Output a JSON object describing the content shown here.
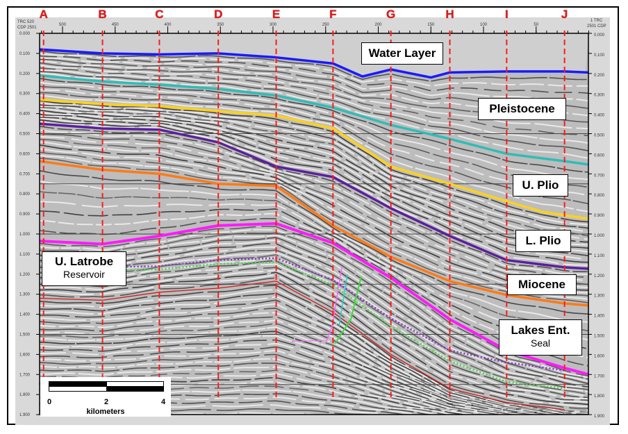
{
  "header": {
    "left_label_trc": "TRC 520",
    "left_label_cdp": "CDP 2501",
    "right_label_trc": "1 TRC",
    "right_label_cdp": "2501 CDP"
  },
  "trace_ticks": [
    "500",
    "450",
    "400",
    "350",
    "300",
    "250",
    "200",
    "150",
    "100",
    "50"
  ],
  "trace_tick_values": [
    500,
    450,
    400,
    350,
    300,
    250,
    200,
    150,
    100,
    50
  ],
  "time_ticks": [
    "0.000",
    "0.100",
    "0.200",
    "0.300",
    "0.400",
    "0.500",
    "0.600",
    "0.700",
    "0.800",
    "0.900",
    "1.000",
    "1.100",
    "1.200",
    "1.300",
    "1.400",
    "1.500",
    "1.600",
    "1.700",
    "1.800",
    "1.900"
  ],
  "wells": [
    {
      "name": "A",
      "cdp": 518
    },
    {
      "name": "B",
      "cdp": 462
    },
    {
      "name": "C",
      "cdp": 408
    },
    {
      "name": "D",
      "cdp": 352
    },
    {
      "name": "E",
      "cdp": 297
    },
    {
      "name": "F",
      "cdp": 243
    },
    {
      "name": "G",
      "cdp": 188
    },
    {
      "name": "H",
      "cdp": 132
    },
    {
      "name": "I",
      "cdp": 78
    },
    {
      "name": "J",
      "cdp": 23
    }
  ],
  "horizons": [
    {
      "name": "Water Layer",
      "color": "#1a1aff",
      "style": "solid",
      "points": [
        [
          522,
          0.08
        ],
        [
          462,
          0.1
        ],
        [
          408,
          0.105
        ],
        [
          352,
          0.1
        ],
        [
          297,
          0.12
        ],
        [
          243,
          0.15
        ],
        [
          215,
          0.215
        ],
        [
          188,
          0.18
        ],
        [
          150,
          0.22
        ],
        [
          132,
          0.195
        ],
        [
          78,
          0.19
        ],
        [
          23,
          0.19
        ],
        [
          0,
          0.195
        ]
      ]
    },
    {
      "name": "Pleistocene",
      "color": "#2fbcb8",
      "style": "solid",
      "points": [
        [
          522,
          0.21
        ],
        [
          462,
          0.24
        ],
        [
          408,
          0.256
        ],
        [
          352,
          0.277
        ],
        [
          297,
          0.31
        ],
        [
          243,
          0.37
        ],
        [
          188,
          0.457
        ],
        [
          132,
          0.526
        ],
        [
          78,
          0.6
        ],
        [
          23,
          0.637
        ],
        [
          0,
          0.654
        ]
      ]
    },
    {
      "name": "U. Plio",
      "color": "#ffd21a",
      "style": "solid",
      "points": [
        [
          522,
          0.33
        ],
        [
          462,
          0.353
        ],
        [
          408,
          0.363
        ],
        [
          352,
          0.388
        ],
        [
          297,
          0.41
        ],
        [
          243,
          0.474
        ],
        [
          188,
          0.664
        ],
        [
          132,
          0.75
        ],
        [
          78,
          0.837
        ],
        [
          44,
          0.89
        ],
        [
          0,
          0.924
        ]
      ]
    },
    {
      "name": "L. Plio",
      "color": "#5a1fa0",
      "style": "solid",
      "points": [
        [
          522,
          0.45
        ],
        [
          462,
          0.474
        ],
        [
          408,
          0.48
        ],
        [
          352,
          0.543
        ],
        [
          297,
          0.664
        ],
        [
          243,
          0.716
        ],
        [
          188,
          0.872
        ],
        [
          132,
          1.01
        ],
        [
          78,
          1.13
        ],
        [
          23,
          1.166
        ],
        [
          0,
          1.173
        ]
      ]
    },
    {
      "name": "Miocene",
      "color": "#ff7a14",
      "style": "solid",
      "points": [
        [
          522,
          0.637
        ],
        [
          462,
          0.68
        ],
        [
          408,
          0.7
        ],
        [
          352,
          0.75
        ],
        [
          297,
          0.76
        ],
        [
          243,
          0.958
        ],
        [
          188,
          1.114
        ],
        [
          132,
          1.235
        ],
        [
          78,
          1.304
        ],
        [
          23,
          1.346
        ],
        [
          0,
          1.356
        ]
      ]
    },
    {
      "name": "Lakes Ent.",
      "color": "#ff1aff",
      "style": "solid",
      "points": [
        [
          522,
          1.035
        ],
        [
          462,
          1.05
        ],
        [
          408,
          1.01
        ],
        [
          352,
          0.958
        ],
        [
          297,
          0.948
        ],
        [
          243,
          1.045
        ],
        [
          188,
          1.218
        ],
        [
          132,
          1.425
        ],
        [
          78,
          1.58
        ],
        [
          23,
          1.668
        ],
        [
          0,
          1.7
        ]
      ]
    },
    {
      "name": "Green marker",
      "color": "#3adc3a",
      "style": "dotted",
      "points": [
        [
          462,
          1.183
        ],
        [
          408,
          1.176
        ],
        [
          352,
          1.149
        ],
        [
          297,
          1.14
        ],
        [
          243,
          1.253
        ],
        [
          188,
          1.46
        ],
        [
          132,
          1.633
        ],
        [
          78,
          1.737
        ],
        [
          23,
          1.77
        ]
      ]
    },
    {
      "name": "Purple marker",
      "color": "#8a2fd0",
      "style": "dotted",
      "points": [
        [
          462,
          1.166
        ],
        [
          408,
          1.16
        ],
        [
          352,
          1.13
        ],
        [
          297,
          1.12
        ],
        [
          243,
          1.23
        ],
        [
          188,
          1.42
        ],
        [
          132,
          1.58
        ],
        [
          78,
          1.64
        ],
        [
          23,
          1.68
        ]
      ]
    },
    {
      "name": "Red marker",
      "color": "#d01a1a",
      "style": "thin",
      "points": [
        [
          522,
          1.32
        ],
        [
          462,
          1.33
        ],
        [
          408,
          1.29
        ],
        [
          352,
          1.27
        ],
        [
          297,
          1.235
        ],
        [
          243,
          1.39
        ],
        [
          188,
          1.6
        ],
        [
          132,
          1.77
        ],
        [
          78,
          1.84
        ],
        [
          23,
          1.875
        ]
      ]
    }
  ],
  "labels": {
    "water": {
      "title": "Water Layer"
    },
    "pleistocene": {
      "title": "Pleistocene"
    },
    "uplio": {
      "title": "U. Plio"
    },
    "lplio": {
      "title": "L. Plio"
    },
    "miocene": {
      "title": "Miocene"
    },
    "lakes": {
      "title": "Lakes Ent.",
      "subtitle": "Seal"
    },
    "latrobe": {
      "title": "U. Latrobe",
      "subtitle": "Reservoir"
    }
  },
  "scale_bar": {
    "ticks": [
      "0",
      "2",
      "4"
    ],
    "unit": "kilometers"
  }
}
